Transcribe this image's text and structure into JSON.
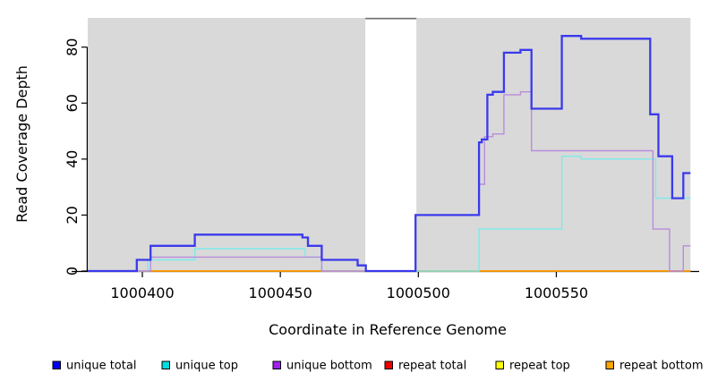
{
  "chart_data": {
    "type": "line",
    "subtype": "step",
    "xlabel": "Coordinate in Reference Genome",
    "ylabel": "Read Coverage Depth",
    "x_ticks": [
      1000400,
      1000450,
      1000500,
      1000550
    ],
    "y_ticks": [
      0,
      20,
      40,
      60,
      80
    ],
    "xlim": [
      1000380.2,
      1000598.6
    ],
    "ylim": [
      0,
      90.5
    ],
    "grid": "off",
    "legend_position": "bottom",
    "panel_background": "#ffffff",
    "masked_region_color": "#d9d9d9",
    "masked_regions": [
      {
        "start": 1000380.2,
        "end": 1000480.8
      },
      {
        "start": 1000499.3,
        "end": 1000598.6
      }
    ],
    "x_start": 1000380.2,
    "x_end": 1000598.6,
    "series": [
      {
        "name": "unique total",
        "color": "#3a3aec",
        "line_width": 2.3,
        "start_value": 0,
        "steps": [
          [
            1000398,
            4
          ],
          [
            1000403,
            9
          ],
          [
            1000419,
            13
          ],
          [
            1000458,
            12
          ],
          [
            1000460,
            9
          ],
          [
            1000465,
            4
          ],
          [
            1000478,
            2
          ],
          [
            1000481,
            0
          ],
          [
            1000499,
            20
          ],
          [
            1000522,
            46
          ],
          [
            1000523,
            47
          ],
          [
            1000525,
            63
          ],
          [
            1000527,
            64
          ],
          [
            1000531,
            78
          ],
          [
            1000537,
            79
          ],
          [
            1000541,
            58
          ],
          [
            1000552,
            84
          ],
          [
            1000559,
            83
          ],
          [
            1000584,
            56
          ],
          [
            1000587,
            41
          ],
          [
            1000592,
            26
          ],
          [
            1000596,
            35
          ]
        ]
      },
      {
        "name": "unique top",
        "color": "#7eeaea",
        "line_width": 1.4,
        "start_value": 0,
        "steps": [
          [
            1000402,
            4
          ],
          [
            1000419,
            8
          ],
          [
            1000459,
            5
          ],
          [
            1000465,
            0
          ],
          [
            1000522,
            15
          ],
          [
            1000552,
            41
          ],
          [
            1000559,
            40
          ],
          [
            1000586,
            26
          ]
        ]
      },
      {
        "name": "unique bottom",
        "color": "#b98cdc",
        "line_width": 1.4,
        "start_value": 0,
        "steps": [
          [
            1000403,
            5
          ],
          [
            1000465,
            0
          ],
          [
            1000499,
            20
          ],
          [
            1000522,
            31
          ],
          [
            1000524,
            48
          ],
          [
            1000527,
            49
          ],
          [
            1000531,
            63
          ],
          [
            1000537,
            64
          ],
          [
            1000541,
            43
          ],
          [
            1000585,
            15
          ],
          [
            1000591,
            0
          ],
          [
            1000596,
            9
          ]
        ]
      },
      {
        "name": "repeat total",
        "color": "#dd2222",
        "line_width": 1.4,
        "start_value": 0,
        "steps": []
      },
      {
        "name": "repeat top",
        "color": "#ffff00",
        "line_width": 1.4,
        "start_value": 0,
        "steps": []
      },
      {
        "name": "repeat bottom",
        "color": "#ffa500",
        "line_width": 1.4,
        "start_value": 0,
        "steps": []
      }
    ],
    "draw_order": [
      "repeat top",
      "repeat total",
      "repeat bottom",
      "unique top",
      "unique bottom",
      "unique total"
    ]
  },
  "legend": {
    "items": [
      {
        "label": "unique total",
        "color": "#0000ee"
      },
      {
        "label": "unique top",
        "color": "#00dddd"
      },
      {
        "label": "unique bottom",
        "color": "#a020f0"
      },
      {
        "label": "repeat total",
        "color": "#ee0000"
      },
      {
        "label": "repeat top",
        "color": "#ffff00"
      },
      {
        "label": "repeat bottom",
        "color": "#ffa500"
      }
    ]
  },
  "labels": {
    "x_axis_title": "Coordinate in Reference Genome",
    "y_axis_title": "Read Coverage Depth"
  }
}
